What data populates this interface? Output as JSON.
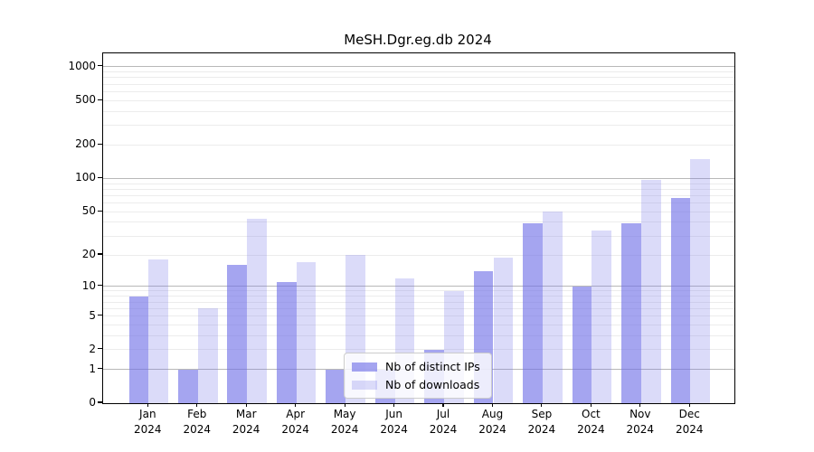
{
  "chart_data": {
    "type": "bar",
    "title": "MeSH.Dgr.eg.db 2024",
    "xlabel": "",
    "ylabel": "",
    "yscale": "log1p",
    "grid": true,
    "legend_position": "inside-bottom-center",
    "ylim": [
      0,
      1300
    ],
    "yticks": [
      0,
      1,
      2,
      5,
      10,
      20,
      50,
      100,
      200,
      500,
      1000
    ],
    "ytick_major_gridlines": [
      1,
      10,
      100,
      1000
    ],
    "ytick_minor_gridlines": [
      2,
      3,
      4,
      5,
      6,
      7,
      8,
      9,
      20,
      30,
      40,
      50,
      60,
      70,
      80,
      90,
      200,
      300,
      400,
      500,
      600,
      700,
      800,
      900
    ],
    "categories": [
      "Jan 2024",
      "Feb 2024",
      "Mar 2024",
      "Apr 2024",
      "May 2024",
      "Jun 2024",
      "Jul 2024",
      "Aug 2024",
      "Sep 2024",
      "Oct 2024",
      "Nov 2024",
      "Dec 2024"
    ],
    "series": [
      {
        "name": "Nb of distinct IPs",
        "color": "rgba(110,110,230,0.62)",
        "values": [
          8,
          1,
          16,
          11,
          1,
          1,
          2,
          14,
          39,
          10,
          39,
          67
        ]
      },
      {
        "name": "Nb of downloads",
        "color": "rgba(110,110,230,0.25)",
        "values": [
          18,
          6,
          43,
          17,
          20,
          12,
          9,
          19,
          50,
          34,
          97,
          148
        ]
      }
    ],
    "colors": {
      "bar_base": "#6e6ee6",
      "major_grid": "#b8b8b8",
      "minor_grid": "#ececec",
      "axis": "#000000",
      "legend_border": "#cccccc"
    }
  }
}
